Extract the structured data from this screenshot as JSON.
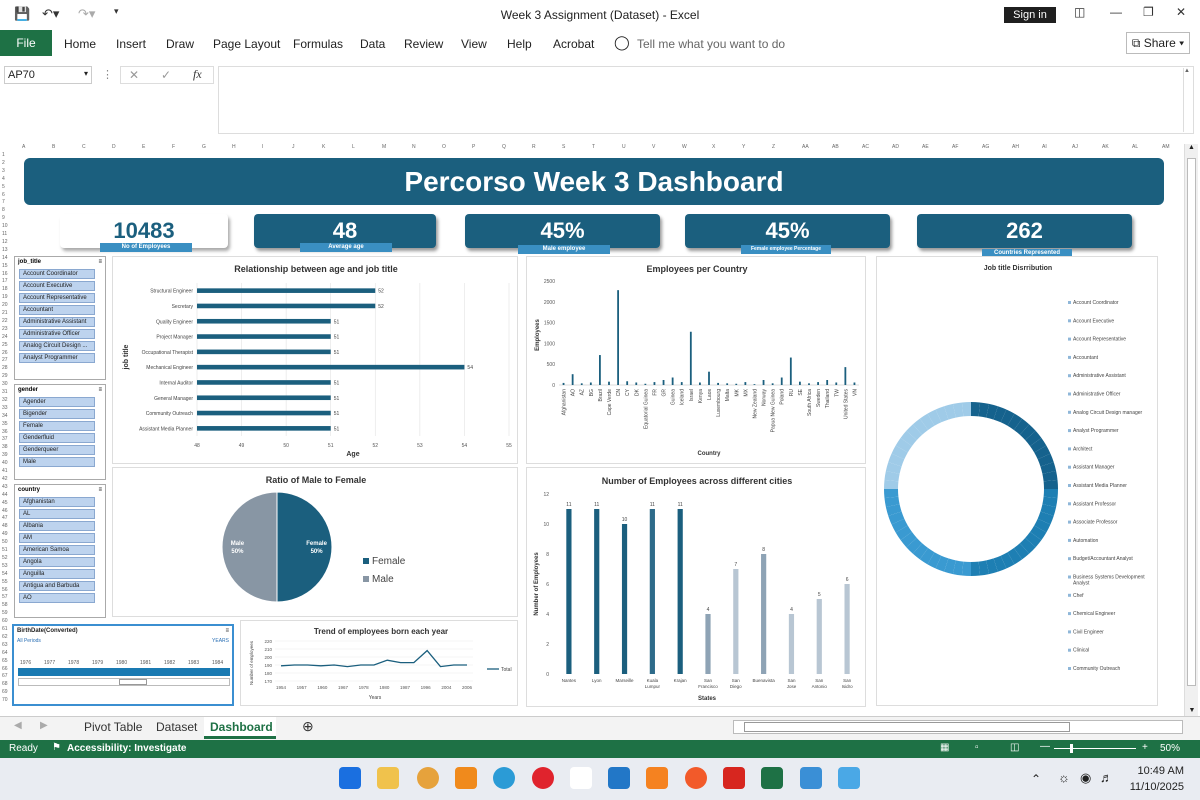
{
  "window": {
    "title": "Week 3 Assignment  (Dataset)  -  Excel",
    "signin": "Sign in"
  },
  "menu": {
    "file": "File",
    "items": [
      "Home",
      "Insert",
      "Draw",
      "Page Layout",
      "Formulas",
      "Data",
      "Review",
      "View",
      "Help",
      "Acrobat"
    ],
    "tell_me": "Tell me what you want to do",
    "share": "Share"
  },
  "formula_bar": {
    "name_box": "AP70",
    "fx": "fx",
    "value": ""
  },
  "columns": [
    "A",
    "B",
    "C",
    "D",
    "E",
    "F",
    "G",
    "H",
    "I",
    "J",
    "K",
    "L",
    "M",
    "N",
    "O",
    "P",
    "Q",
    "R",
    "S",
    "T",
    "U",
    "V",
    "W",
    "X",
    "Y",
    "Z",
    "AA",
    "AB",
    "AC",
    "AD",
    "AE",
    "AF",
    "AG",
    "AH",
    "AI",
    "AJ",
    "AK",
    "AL",
    "AM"
  ],
  "dashboard": {
    "title": "Percorso Week 3 Dashboard",
    "kpis": [
      {
        "value": "10483",
        "label": "No of Employees"
      },
      {
        "value": "48",
        "label": "Average age"
      },
      {
        "value": "45%",
        "label": "Male employee"
      },
      {
        "value": "45%",
        "label": "Female employee Percentage"
      },
      {
        "value": "262",
        "label": "Countries Represented"
      }
    ],
    "slicers": {
      "job_title": {
        "header": "job_title",
        "items": [
          "Account Coordinator",
          "Account Executive",
          "Account Representative",
          "Accountant",
          "Administrative Assistant",
          "Administrative Officer",
          "Analog Circuit Design ...",
          "Analyst Programmer"
        ]
      },
      "gender": {
        "header": "gender",
        "items": [
          "Agender",
          "Bigender",
          "Female",
          "Genderfluid",
          "Genderqueer",
          "Male"
        ]
      },
      "country": {
        "header": "country",
        "items": [
          "Afghanistan",
          "AL",
          "Albania",
          "AM",
          "American Samoa",
          "Angola",
          "Anguilla",
          "Antigua and Barbuda",
          "AO"
        ]
      },
      "timeline": {
        "header": "BirthDate(Converted)",
        "period": "All Periods",
        "unit": "YEARS",
        "years": [
          "1976",
          "1977",
          "1978",
          "1979",
          "1980",
          "1981",
          "1982",
          "1983",
          "1984"
        ]
      }
    },
    "legend_pie": [
      "Female",
      "Male"
    ],
    "pie_labels": {
      "female": "Female\n50%",
      "male": "Male\n50%"
    },
    "donut_title": "Job title Disrribution",
    "donut_legend": [
      "Account Coordinator",
      "Account Executive",
      "Account Representative",
      "Accountant",
      "Administrative Assistant",
      "Administrative Officer",
      "Analog Circuit Design manager",
      "Analyst Programmer",
      "Architect",
      "Assistant Manager",
      "Assistant Media Planner",
      "Assistant Professor",
      "Associate Professor",
      "Automation",
      "Budget/Accountant Analyst",
      "Business Systems Development Analyst",
      "Chef",
      "Chemical Engineer",
      "Civil Engineer",
      "Clinical",
      "Community Outreach"
    ]
  },
  "chart_data": [
    {
      "type": "bar",
      "title": "Relationship between age and job title",
      "xlabel": "Age",
      "ylabel": "job title",
      "categories": [
        "Structural Engineer",
        "Secretary",
        "Quality Engineer",
        "Project Manager",
        "Occupational Therapist",
        "Mechanical Engineer",
        "Internal Auditor",
        "General Manager",
        "Community Outreach",
        "Assistant Media Planner"
      ],
      "values": [
        52,
        52,
        51,
        51,
        51,
        54,
        51,
        51,
        51,
        51
      ],
      "xticks": [
        "48",
        "49",
        "50",
        "51",
        "52",
        "53",
        "54",
        "55"
      ],
      "xlim": [
        48,
        55
      ]
    },
    {
      "type": "bar",
      "title": "Employees per Country",
      "xlabel": "Country",
      "ylabel": "Employees",
      "categories": [
        "Afghanistan",
        "AO",
        "AZ",
        "BG",
        "Brazil",
        "Cape Verde",
        "CN",
        "CY",
        "DK",
        "Equatorial Guinea",
        "FR",
        "GR",
        "Guinea",
        "Iceland",
        "Israel",
        "Kenya",
        "Laos",
        "Luxembourg",
        "Malta",
        "MK",
        "MX",
        "New Zealand",
        "Norway",
        "Papua New Guinea",
        "Poland",
        "RU",
        "SE",
        "South Africa",
        "Sweden",
        "Thailand",
        "TW",
        "United States",
        "VN"
      ],
      "values": [
        50,
        260,
        40,
        60,
        720,
        80,
        2280,
        90,
        60,
        30,
        70,
        120,
        180,
        70,
        1280,
        60,
        320,
        50,
        40,
        30,
        70,
        20,
        120,
        40,
        180,
        660,
        80,
        40,
        70,
        120,
        60,
        430,
        60
      ],
      "yticks": [
        "0",
        "500",
        "1000",
        "1500",
        "2000",
        "2500"
      ],
      "ylim": [
        0,
        2500
      ]
    },
    {
      "type": "pie",
      "title": "Ratio of Male to Female",
      "categories": [
        "Female",
        "Male"
      ],
      "values": [
        50,
        50
      ]
    },
    {
      "type": "bar",
      "title": "Number of Employees across different cities",
      "xlabel": "States",
      "ylabel": "Number of Employees",
      "categories": [
        "Nantes",
        "Lyon",
        "Marseille",
        "Kuala Lumpur",
        "Krajan",
        "San Francisco",
        "San Diego",
        "Buenavista",
        "San Jose",
        "San Antonio",
        "San Isidro"
      ],
      "values": [
        11,
        11,
        10,
        11,
        11,
        4,
        7,
        8,
        4,
        5,
        6
      ],
      "yticks": [
        "0",
        "2",
        "4",
        "6",
        "8",
        "10",
        "12"
      ],
      "ylim": [
        0,
        12
      ]
    },
    {
      "type": "line",
      "title": "Trend of employees born each year",
      "xlabel": "Years",
      "ylabel": "Number of employees",
      "x": [
        "1954",
        "1957",
        "1960",
        "1963",
        "1967",
        "1970",
        "1975",
        "1978",
        "1981",
        "1987",
        "1990",
        "1996",
        "1999",
        "2004",
        "2006"
      ],
      "series": [
        {
          "name": "Total",
          "values": [
            189,
            190,
            190,
            189,
            190,
            188,
            190,
            190,
            196,
            193,
            193,
            208,
            188,
            190,
            190
          ]
        }
      ],
      "xticks": [
        "1954",
        "1957",
        "1960",
        "1967",
        "1978",
        "1980",
        "1987",
        "1996",
        "2004",
        "2006"
      ],
      "yticks": [
        "170",
        "180",
        "190",
        "200",
        "210",
        "220"
      ],
      "ylim": [
        170,
        220
      ]
    }
  ],
  "sheet_tabs": [
    "Pivot Table",
    "Dataset",
    "Dashboard"
  ],
  "status": {
    "ready": "Ready",
    "accessibility": "Accessibility: Investigate",
    "zoom": "50%"
  },
  "clock": {
    "time": "10:49 AM",
    "date": "11/10/2025"
  }
}
